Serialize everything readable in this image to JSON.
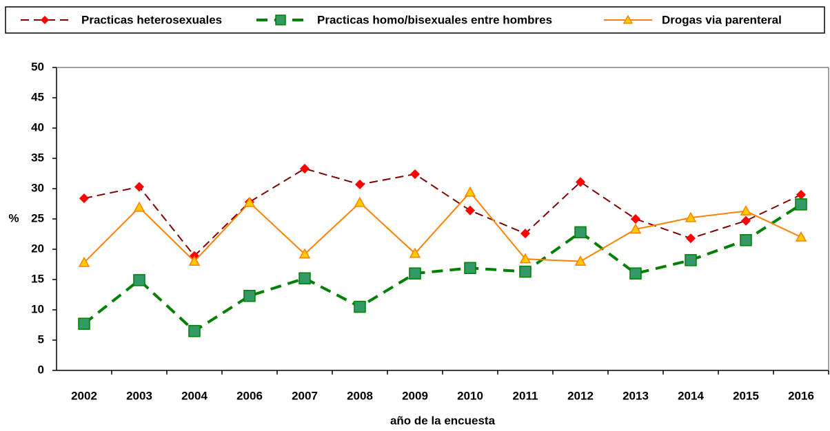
{
  "chart_data": {
    "type": "line",
    "categories": [
      "2002",
      "2003",
      "2004",
      "2006",
      "2007",
      "2008",
      "2009",
      "2010",
      "2011",
      "2012",
      "2013",
      "2014",
      "2015",
      "2016"
    ],
    "x_label": "año de la encuesta",
    "y_label": "%",
    "ylim": [
      0,
      50
    ],
    "yticks": [
      0,
      5,
      10,
      15,
      20,
      25,
      30,
      35,
      40,
      45,
      50
    ],
    "grid": false,
    "series": [
      {
        "name": "Practicas heterosexuales",
        "color": "#800000",
        "marker_color": "#ff0000",
        "marker": "diamond",
        "dash": "dashed",
        "width": 2,
        "values": [
          28.4,
          30.3,
          18.9,
          27.8,
          33.3,
          30.7,
          32.4,
          26.4,
          22.6,
          31.1,
          25.0,
          21.8,
          24.7,
          29.0
        ]
      },
      {
        "name": "Practicas homo/bisexuales entre hombres",
        "color": "#008000",
        "marker_color": "#339966",
        "marker": "square",
        "dash": "dashed",
        "width": 4,
        "values": [
          7.7,
          14.9,
          6.5,
          12.3,
          15.2,
          10.5,
          16.0,
          16.9,
          16.3,
          22.8,
          16.0,
          18.2,
          21.5,
          27.4
        ]
      },
      {
        "name": "Drogas via parenteral",
        "color": "#ff8000",
        "marker_color": "#ffcc00",
        "marker": "triangle",
        "dash": "solid",
        "width": 2,
        "values": [
          17.8,
          26.9,
          18.0,
          27.7,
          19.2,
          27.7,
          19.3,
          29.4,
          18.4,
          18.0,
          23.3,
          25.2,
          26.3,
          22.0
        ]
      }
    ]
  }
}
